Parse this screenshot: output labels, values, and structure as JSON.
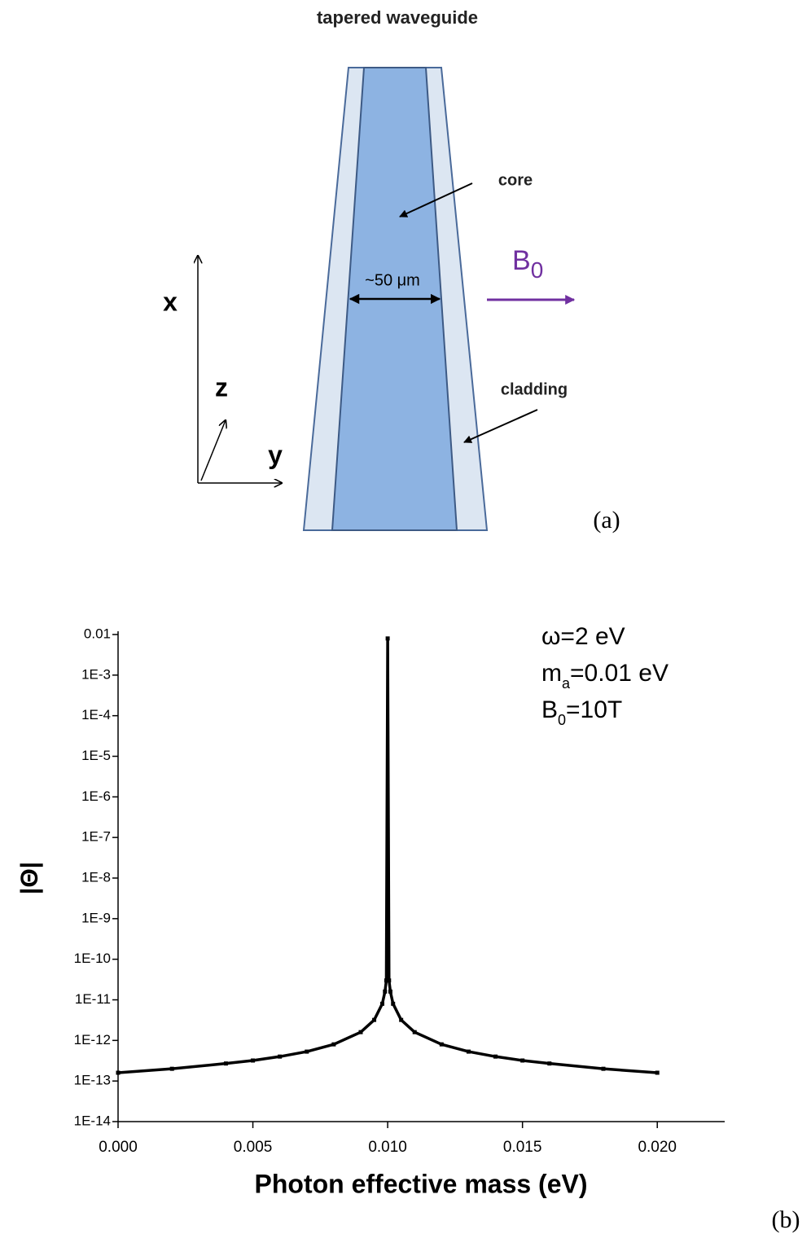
{
  "diagram": {
    "title": "tapered waveguide",
    "core": "core",
    "cladding": "cladding",
    "width": "~50 μm",
    "field": {
      "main": "B",
      "sub": "0"
    },
    "axis_x": "x",
    "axis_y": "y",
    "axis_z": "z",
    "panel": "(a)"
  },
  "chart_data": {
    "type": "line",
    "color": "#000000",
    "log_y": true,
    "x": [
      0,
      0.002,
      0.004,
      0.005,
      0.006,
      0.007,
      0.008,
      0.009,
      0.0095,
      0.0098,
      0.0099,
      0.00995,
      0.01,
      0.01005,
      0.0101,
      0.0102,
      0.0105,
      0.011,
      0.012,
      0.013,
      0.014,
      0.015,
      0.016,
      0.018,
      0.02
    ],
    "values": [
      1.6e-13,
      2e-13,
      2.7e-13,
      3.2e-13,
      4e-13,
      5.3e-13,
      8e-13,
      1.6e-12,
      3.2e-12,
      8e-12,
      1.6e-11,
      3e-11,
      0.008,
      3e-11,
      1.6e-11,
      8e-12,
      3.2e-12,
      1.6e-12,
      8e-13,
      5.3e-13,
      4e-13,
      3.2e-13,
      2.7e-13,
      2e-13,
      1.6e-13
    ],
    "xlim": [
      0,
      0.0225
    ],
    "xticks": [
      {
        "value": 0,
        "label": "0.000"
      },
      {
        "value": 0.005,
        "label": "0.005"
      },
      {
        "value": 0.01,
        "label": "0.010"
      },
      {
        "value": 0.015,
        "label": "0.015"
      },
      {
        "value": 0.02,
        "label": "0.020"
      }
    ],
    "ylim": [
      1e-14,
      0.01
    ],
    "yticks": [
      0.01,
      {
        "value": 0.001,
        "label": "1E-3"
      },
      {
        "value": 0.0001,
        "label": "1E-4"
      },
      {
        "value": 1e-05,
        "label": "1E-5"
      },
      {
        "value": 1e-06,
        "label": "1E-6"
      },
      {
        "value": 1e-07,
        "label": "1E-7"
      },
      {
        "value": 1e-08,
        "label": "1E-8"
      },
      {
        "value": 1e-09,
        "label": "1E-9"
      },
      {
        "value": 1e-10,
        "label": "1E-10"
      },
      {
        "value": 1e-11,
        "label": "1E-11"
      },
      {
        "value": 1e-12,
        "label": "1E-12"
      },
      {
        "value": 1e-13,
        "label": "1E-13"
      },
      {
        "value": 1e-14,
        "label": "1E-14"
      }
    ],
    "x_label": "Photon effective mass (eV)",
    "y_label": "|Θ|",
    "annotations": [
      [
        "ω=2 eV"
      ],
      [
        "m",
        "a",
        "=0.01 eV"
      ],
      [
        "B",
        "0",
        "=10T"
      ]
    ],
    "panel": "(b)"
  }
}
